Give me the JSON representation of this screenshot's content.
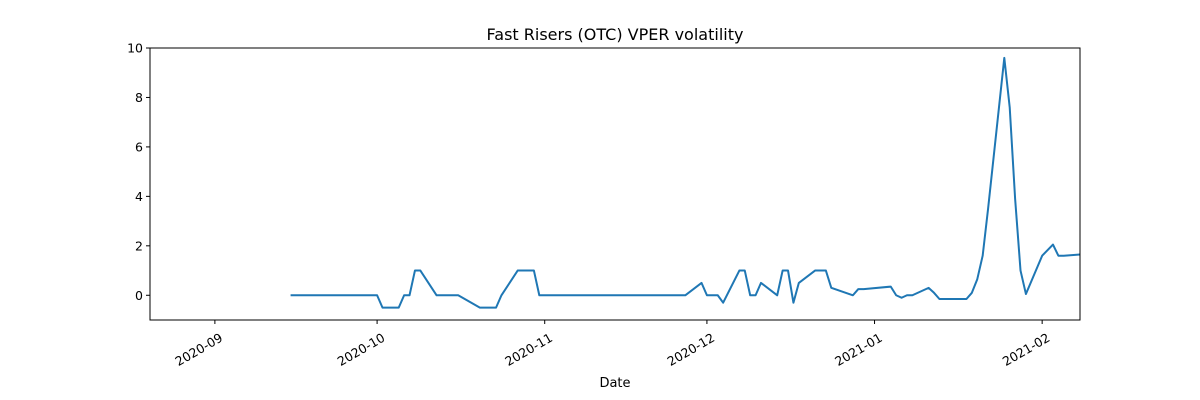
{
  "chart_data": {
    "type": "line",
    "title": "Fast Risers (OTC) VPER volatility",
    "xlabel": "Date",
    "ylabel": "",
    "x_axis_type": "date",
    "xlim": [
      "2020-08-20",
      "2021-02-08"
    ],
    "ylim": [
      -1,
      10
    ],
    "x_ticks": [
      {
        "date": "2020-09-01",
        "label": "2020-09"
      },
      {
        "date": "2020-10-01",
        "label": "2020-10"
      },
      {
        "date": "2020-11-01",
        "label": "2020-11"
      },
      {
        "date": "2020-12-01",
        "label": "2020-12"
      },
      {
        "date": "2021-01-01",
        "label": "2021-01"
      },
      {
        "date": "2021-02-01",
        "label": "2021-02"
      }
    ],
    "y_ticks": [
      0,
      2,
      4,
      6,
      8,
      10
    ],
    "grid": false,
    "line_color": "#1f77b4",
    "series": [
      {
        "x": [
          "2020-09-15",
          "2020-10-01",
          "2020-10-02",
          "2020-10-05",
          "2020-10-06",
          "2020-10-07",
          "2020-10-08",
          "2020-10-09",
          "2020-10-12",
          "2020-10-16",
          "2020-10-20",
          "2020-10-23",
          "2020-10-24",
          "2020-10-27",
          "2020-10-30",
          "2020-10-31",
          "2020-11-27",
          "2020-11-30",
          "2020-12-01",
          "2020-12-03",
          "2020-12-04",
          "2020-12-07",
          "2020-12-08",
          "2020-12-09",
          "2020-12-10",
          "2020-12-11",
          "2020-12-14",
          "2020-12-15",
          "2020-12-16",
          "2020-12-17",
          "2020-12-18",
          "2020-12-21",
          "2020-12-23",
          "2020-12-24",
          "2020-12-28",
          "2020-12-29",
          "2020-12-30",
          "2021-01-04",
          "2021-01-05",
          "2021-01-06",
          "2021-01-07",
          "2021-01-08",
          "2021-01-11",
          "2021-01-12",
          "2021-01-13",
          "2021-01-14",
          "2021-01-18",
          "2021-01-19",
          "2021-01-20",
          "2021-01-21",
          "2021-01-22",
          "2021-01-25",
          "2021-01-26",
          "2021-01-27",
          "2021-01-28",
          "2021-01-29",
          "2021-02-01",
          "2021-02-03",
          "2021-02-04",
          "2021-02-05",
          "2021-02-08"
        ],
        "y": [
          0,
          0,
          -0.5,
          -0.5,
          0,
          0,
          1,
          1,
          0,
          0,
          -0.5,
          -0.5,
          0,
          1,
          1,
          0,
          0,
          0.5,
          0,
          0,
          -0.3,
          1,
          1,
          0,
          0,
          0.5,
          0,
          1,
          1,
          -0.3,
          0.5,
          1,
          1,
          0.3,
          0,
          0.25,
          0.25,
          0.35,
          0,
          -0.1,
          0,
          0,
          0.3,
          0.1,
          -0.15,
          -0.15,
          -0.15,
          0.1,
          0.65,
          1.6,
          3.5,
          9.6,
          7.6,
          3.9,
          1.0,
          0.05,
          1.6,
          2.05,
          1.6,
          1.6,
          1.65
        ]
      }
    ]
  }
}
